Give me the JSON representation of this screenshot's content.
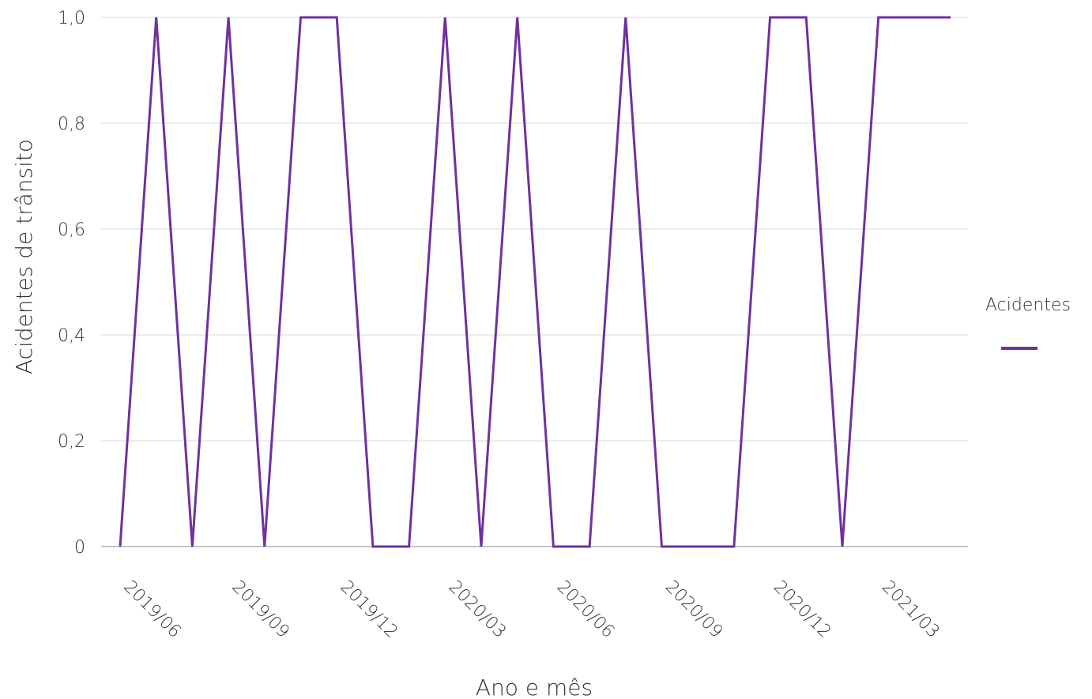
{
  "chart_data": {
    "type": "line",
    "title": "",
    "xlabel": "Ano e mês",
    "ylabel": "Acidentes de trânsito",
    "x": [
      "2019/05",
      "2019/06",
      "2019/07",
      "2019/08",
      "2019/09",
      "2019/10",
      "2019/11",
      "2019/12",
      "2020/01",
      "2020/02",
      "2020/03",
      "2020/04",
      "2020/05",
      "2020/06",
      "2020/07",
      "2020/08",
      "2020/09",
      "2020/10",
      "2020/11",
      "2020/12",
      "2021/01",
      "2021/02",
      "2021/03",
      "2021/04"
    ],
    "x_tick_labels": [
      "2019/06",
      "2019/09",
      "2019/12",
      "2020/03",
      "2020/06",
      "2020/09",
      "2020/12",
      "2021/03"
    ],
    "y_tick_labels": [
      "0",
      "0,2",
      "0,4",
      "0,6",
      "0,8",
      "1,0"
    ],
    "y_ticks": [
      0,
      0.2,
      0.4,
      0.6,
      0.8,
      1.0
    ],
    "ylim": [
      0,
      1.0
    ],
    "grid": "horizontal",
    "legend": {
      "title": "Acidentes",
      "placement": "right"
    },
    "series": [
      {
        "color": "#7030A0",
        "values": [
          0,
          1,
          0,
          1,
          0,
          1,
          1,
          0,
          0,
          1,
          0,
          1,
          0,
          0,
          1,
          0,
          0,
          0,
          1,
          1,
          0,
          1,
          1,
          1
        ]
      }
    ]
  }
}
